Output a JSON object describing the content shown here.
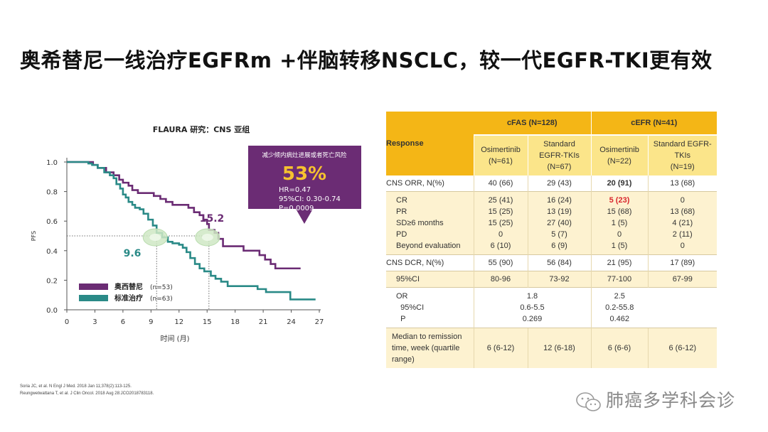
{
  "title": "奥希替尼一线治疗EGFRm  +伴脑转移NSCLC，较一代EGFR-TKI更有效",
  "chart_data": {
    "type": "line",
    "title": "FLAURA 研究：CNS 亚组",
    "xlabel": "时间 (月)",
    "ylabel": "PFS",
    "xlim": [
      0,
      27
    ],
    "ylim": [
      0,
      1.0
    ],
    "xticks": [
      "0",
      "3",
      "6",
      "9",
      "12",
      "15",
      "18",
      "21",
      "24",
      "27"
    ],
    "yticks": [
      "0.0",
      "0.2",
      "0.4",
      "0.6",
      "0.8",
      "1.0"
    ],
    "series": [
      {
        "name": "奥西替尼",
        "n_label": "(n=53)",
        "color": "#6b2c74",
        "median": "15.2",
        "points": [
          [
            0,
            1.0
          ],
          [
            2,
            1.0
          ],
          [
            2.8,
            0.98
          ],
          [
            3.3,
            0.96
          ],
          [
            4.2,
            0.93
          ],
          [
            5.0,
            0.91
          ],
          [
            5.6,
            0.88
          ],
          [
            6.0,
            0.86
          ],
          [
            6.6,
            0.84
          ],
          [
            7.0,
            0.81
          ],
          [
            7.6,
            0.79
          ],
          [
            8.5,
            0.79
          ],
          [
            9.3,
            0.77
          ],
          [
            10.0,
            0.75
          ],
          [
            10.6,
            0.73
          ],
          [
            11.3,
            0.71
          ],
          [
            12.5,
            0.71
          ],
          [
            13.0,
            0.69
          ],
          [
            13.6,
            0.66
          ],
          [
            14.2,
            0.64
          ],
          [
            14.6,
            0.61
          ],
          [
            15.0,
            0.58
          ],
          [
            15.2,
            0.54
          ],
          [
            15.8,
            0.52
          ],
          [
            16.2,
            0.48
          ],
          [
            16.7,
            0.43
          ],
          [
            18.4,
            0.43
          ],
          [
            18.9,
            0.4
          ],
          [
            20.1,
            0.4
          ],
          [
            20.6,
            0.37
          ],
          [
            21.2,
            0.34
          ],
          [
            21.8,
            0.31
          ],
          [
            22.3,
            0.28
          ],
          [
            25.0,
            0.28
          ]
        ]
      },
      {
        "name": "标准治疗",
        "n_label": "(n=63)",
        "color": "#2a8a87",
        "median": "9.6",
        "points": [
          [
            0,
            1.0
          ],
          [
            1.7,
            1.0
          ],
          [
            2.3,
            0.99
          ],
          [
            2.7,
            0.98
          ],
          [
            3.3,
            0.96
          ],
          [
            4.0,
            0.93
          ],
          [
            4.6,
            0.91
          ],
          [
            5.0,
            0.89
          ],
          [
            5.3,
            0.85
          ],
          [
            5.7,
            0.82
          ],
          [
            6.0,
            0.78
          ],
          [
            6.3,
            0.76
          ],
          [
            6.6,
            0.73
          ],
          [
            7.0,
            0.71
          ],
          [
            7.3,
            0.69
          ],
          [
            7.8,
            0.68
          ],
          [
            8.2,
            0.65
          ],
          [
            8.7,
            0.61
          ],
          [
            9.2,
            0.57
          ],
          [
            9.6,
            0.52
          ],
          [
            10.2,
            0.49
          ],
          [
            10.8,
            0.46
          ],
          [
            11.3,
            0.45
          ],
          [
            12.0,
            0.44
          ],
          [
            12.4,
            0.42
          ],
          [
            12.8,
            0.39
          ],
          [
            13.2,
            0.35
          ],
          [
            13.7,
            0.31
          ],
          [
            14.2,
            0.28
          ],
          [
            14.7,
            0.26
          ],
          [
            15.4,
            0.23
          ],
          [
            15.9,
            0.21
          ],
          [
            16.5,
            0.19
          ],
          [
            17.2,
            0.16
          ],
          [
            20.1,
            0.16
          ],
          [
            20.4,
            0.14
          ],
          [
            21.0,
            0.14
          ],
          [
            21.3,
            0.12
          ],
          [
            23.6,
            0.12
          ],
          [
            23.9,
            0.07
          ],
          [
            26.6,
            0.07
          ]
        ]
      }
    ],
    "reference_line_y": 0.5,
    "callout": {
      "heading": "减少倾内病灶进展或者死亡风险",
      "percent": "53%",
      "hr": "HR=0.47",
      "ci": "95%CI: 0.30-0.74",
      "p": "P=0.0009"
    }
  },
  "table": {
    "response_header": "Response",
    "group1": "cFAS (N=128)",
    "group2": "cEFR (N=41)",
    "sub": {
      "c1": "Osimertinib\n(N=61)",
      "c2": "Standard\nEGFR-TKIs\n(N=67)",
      "c3": "Osimertinib\n(N=22)",
      "c4": "Standard  EGFR-TKIs\n(N=19)"
    },
    "orr": [
      "CNS ORR, N(%)",
      "40 (66)",
      "29 (43)",
      "20 (91)",
      "13 (68)"
    ],
    "breakdown_labels": "CR\nPR\nSD≥6 months\nPD\nBeyond evaluation",
    "breakdown_c1": "25 (41)\n15 (25)\n15 (25)\n0\n6 (10)",
    "breakdown_c2": "16 (24)\n13 (19)\n27 (40)\n5 (7)\n6 (9)",
    "breakdown_c3_first": "5 (23)",
    "breakdown_c3_rest": "15 (68)\n1 (5)\n0\n1 (5)",
    "breakdown_c4": "0\n13 (68)\n4 (21)\n2 (11)\n0",
    "dcr": [
      "CNS DCR, N(%)",
      "55 (90)",
      "56 (84)",
      "21 (95)",
      "17 (89)"
    ],
    "ci95": [
      "95%CI",
      "80-96",
      "73-92",
      "77-100",
      "67-99"
    ],
    "or_labels": "OR\n  95%CI\n  P",
    "or_g1": "1.8\n0.6-5.5\n0.269",
    "or_g2": "2.5\n0.2-55.8\n0.462",
    "median_label": "Median to remission time, week (quartile range)",
    "median": [
      "6 (6-12)",
      "12 (6-18)",
      "6 (6-6)",
      "6 (6-12)"
    ]
  },
  "references": [
    "Soria JC, et al. N Engl J Med. 2018 Jan 11;378(2):113-125.",
    "Reungwetwattana T, et al. J Clin Oncol. 2018 Aug 28:JCO2018783118."
  ],
  "watermark": "肺癌多学科会诊"
}
